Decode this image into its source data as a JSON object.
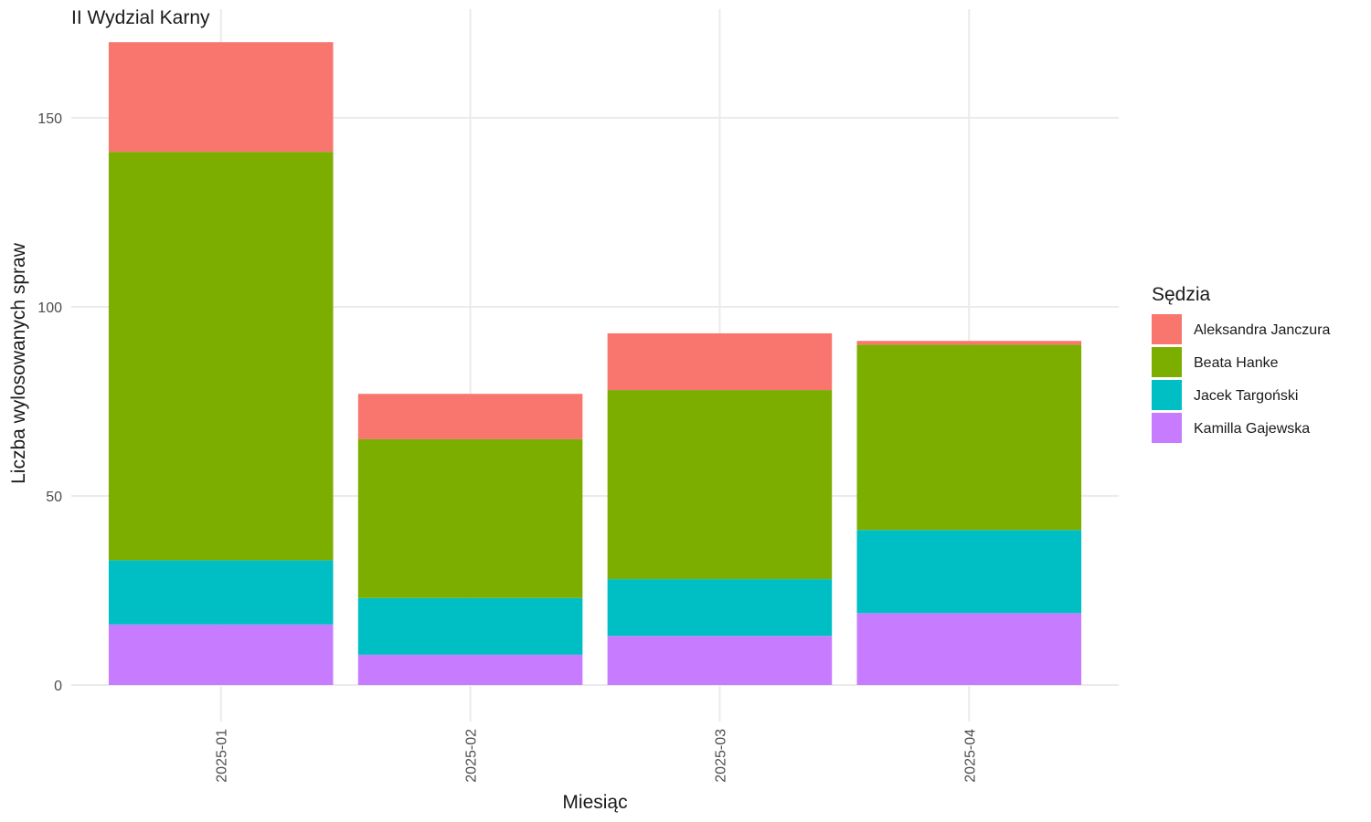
{
  "chart_data": {
    "type": "bar",
    "stacked": true,
    "title": "II Wydzial Karny",
    "xlabel": "Miesiąc",
    "ylabel": "Liczba wylosowanych spraw",
    "categories": [
      "2025-01",
      "2025-02",
      "2025-03",
      "2025-04"
    ],
    "ylim": [
      0,
      170
    ],
    "yticks": [
      0,
      50,
      100,
      150
    ],
    "grid": true,
    "legend": {
      "title": "Sędzia",
      "position": "right"
    },
    "series": [
      {
        "name": "Kamilla Gajewska",
        "color": "#C77CFF",
        "values": [
          16,
          8,
          13,
          19
        ]
      },
      {
        "name": "Jacek Targoński",
        "color": "#00BFC4",
        "values": [
          17,
          15,
          15,
          22
        ]
      },
      {
        "name": "Beata Hanke",
        "color": "#7CAE00",
        "values": [
          108,
          42,
          50,
          49
        ]
      },
      {
        "name": "Aleksandra Janczura",
        "color": "#F8766D",
        "values": [
          29,
          12,
          15,
          1
        ]
      }
    ],
    "legend_order": [
      "Aleksandra Janczura",
      "Beata Hanke",
      "Jacek Targoński",
      "Kamilla Gajewska"
    ]
  }
}
